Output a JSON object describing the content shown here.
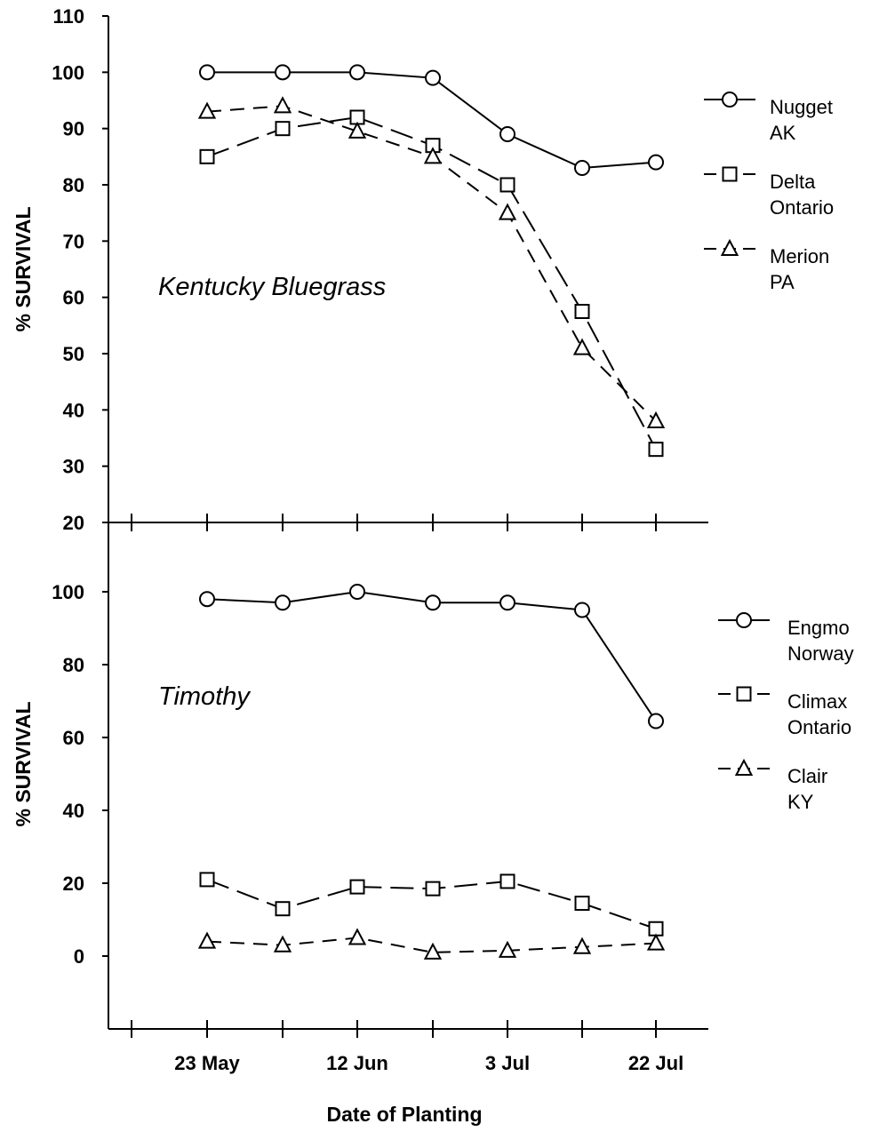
{
  "chart_data": [
    {
      "type": "line",
      "title": "Kentucky Bluegrass",
      "ylabel": "% SURVIVAL",
      "xlabel": "Date of Planting",
      "ylim": [
        20,
        110
      ],
      "yticks": [
        20,
        30,
        40,
        50,
        60,
        70,
        80,
        90,
        100,
        110
      ],
      "x_tick_labels": [
        "23 May",
        "",
        "12 Jun",
        "",
        "3 Jul",
        "",
        "22 Jul"
      ],
      "legend_position": "right",
      "series": [
        {
          "name": [
            "Nugget",
            "AK"
          ],
          "marker": "circle",
          "dash": "solid",
          "values": [
            100,
            100,
            100,
            99,
            89,
            83,
            84
          ]
        },
        {
          "name": [
            "Delta",
            "Ontario"
          ],
          "marker": "square",
          "dash": "long-dash",
          "values": [
            85,
            90,
            92,
            87,
            80,
            57.5,
            33
          ]
        },
        {
          "name": [
            "Merion",
            "PA"
          ],
          "marker": "triangle",
          "dash": "dash",
          "values": [
            93,
            94,
            89.5,
            85,
            75,
            51,
            38
          ]
        }
      ]
    },
    {
      "type": "line",
      "title": "Timothy",
      "ylabel": "% SURVIVAL",
      "xlabel": "Date of Planting",
      "ylim": [
        -20,
        120
      ],
      "yticks": [
        0,
        20,
        40,
        60,
        80,
        100
      ],
      "x_tick_labels": [
        "23 May",
        "",
        "12 Jun",
        "",
        "3 Jul",
        "",
        "22 Jul"
      ],
      "legend_position": "right",
      "series": [
        {
          "name": [
            "Engmo",
            "Norway"
          ],
          "marker": "circle",
          "dash": "solid",
          "values": [
            98,
            97,
            100,
            97,
            97,
            95,
            64.5
          ]
        },
        {
          "name": [
            "Climax",
            "Ontario"
          ],
          "marker": "square",
          "dash": "long-dash",
          "values": [
            21,
            13,
            19,
            18.5,
            20.5,
            14.5,
            7.5
          ]
        },
        {
          "name": [
            "Clair",
            "KY"
          ],
          "marker": "triangle",
          "dash": "dash",
          "values": [
            4,
            3,
            5,
            1,
            1.5,
            2.5,
            3.5
          ]
        }
      ]
    }
  ]
}
